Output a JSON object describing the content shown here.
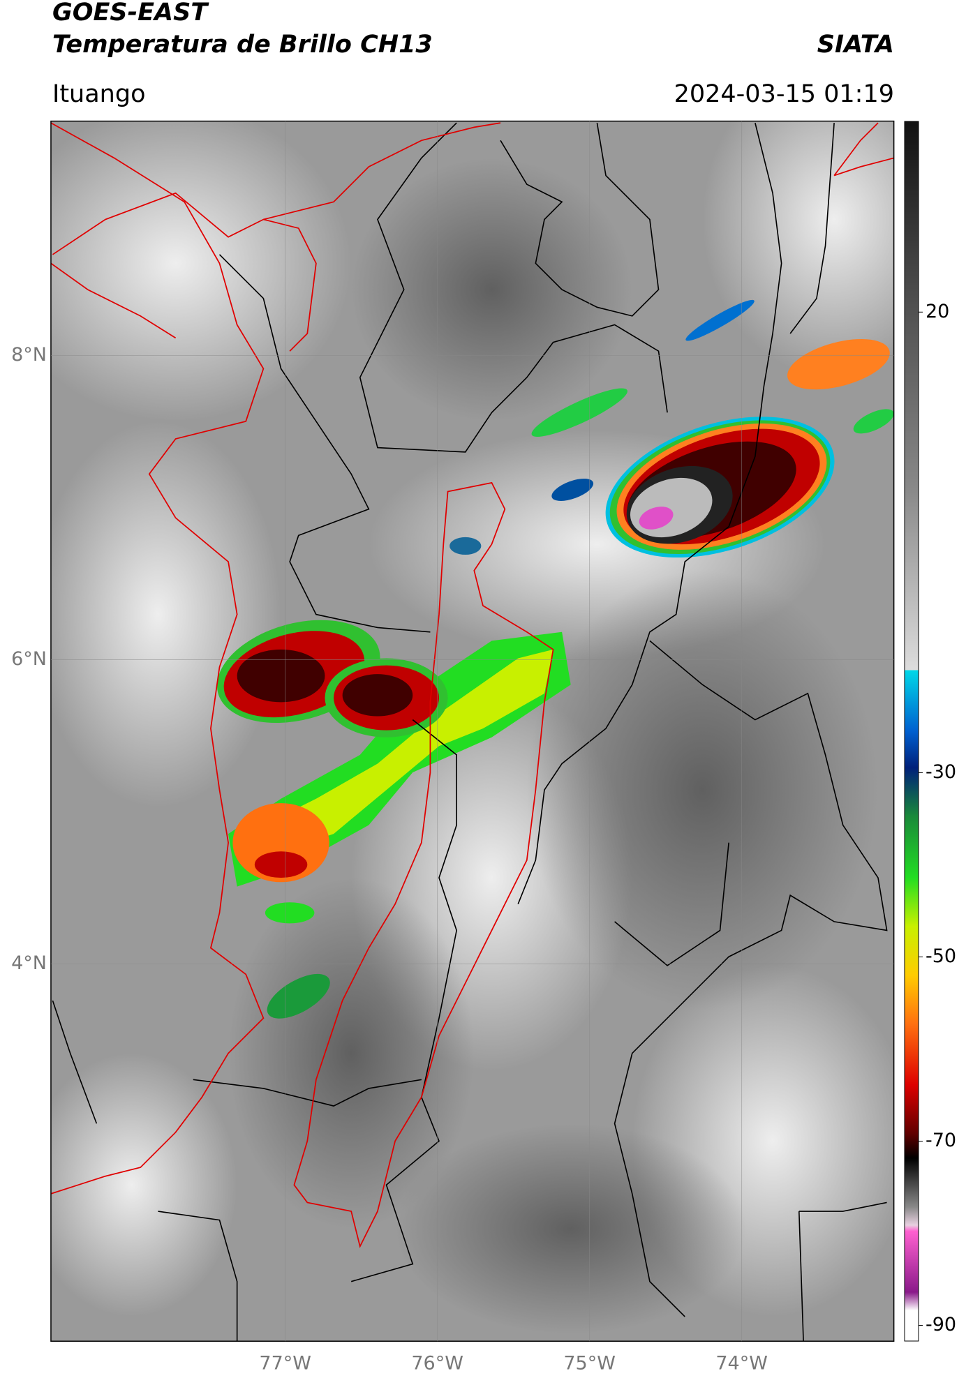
{
  "header": {
    "satellite": "GOES-EAST",
    "product": "Temperatura de Brillo CH13",
    "organization": "SIATA",
    "location": "Ituango",
    "datetime": "2024-03-15 01:19"
  },
  "map": {
    "lon_lim": [
      -78.54,
      -73.0
    ],
    "lat_lim": [
      1.52,
      9.54
    ],
    "lat_ticks": [
      {
        "value": 8,
        "label": "8°N"
      },
      {
        "value": 6,
        "label": "6°N"
      },
      {
        "value": 4,
        "label": "4°N"
      }
    ],
    "lon_ticks": [
      {
        "value": -77,
        "label": "77°W"
      },
      {
        "value": -76,
        "label": "76°W"
      },
      {
        "value": -75,
        "label": "75°W"
      },
      {
        "value": -74,
        "label": "74°W"
      }
    ]
  },
  "colorbar": {
    "lim": [
      -91.7,
      40.7
    ],
    "ticks": [
      20,
      -30,
      -50,
      -70,
      -90
    ]
  }
}
